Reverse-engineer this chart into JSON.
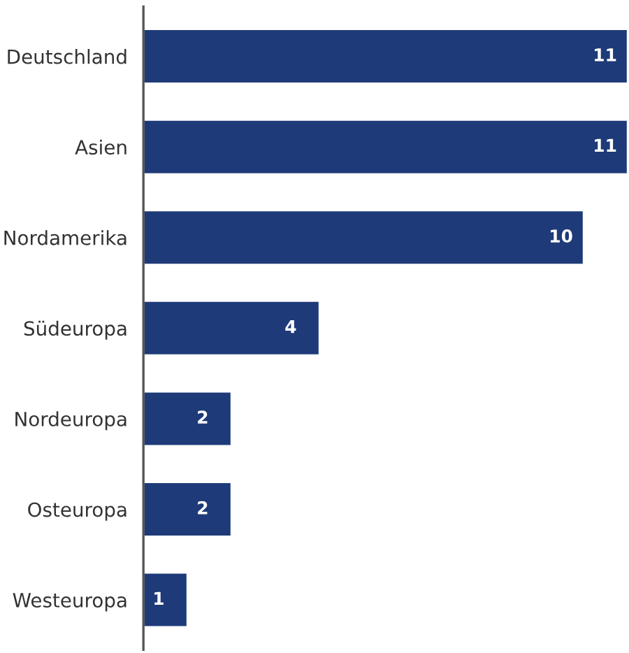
{
  "chart_data": {
    "type": "bar",
    "orientation": "horizontal",
    "categories": [
      "Deutschland",
      "Asien",
      "Nordamerika",
      "Südeuropa",
      "Nordeuropa",
      "Osteuropa",
      "Westeuropa"
    ],
    "values": [
      11,
      11,
      10,
      4,
      2,
      2,
      1
    ],
    "color": "#1e3a78",
    "data_labels": true,
    "xlim": [
      0,
      11
    ],
    "tick_labels": "y",
    "grid": false,
    "legend": false
  }
}
